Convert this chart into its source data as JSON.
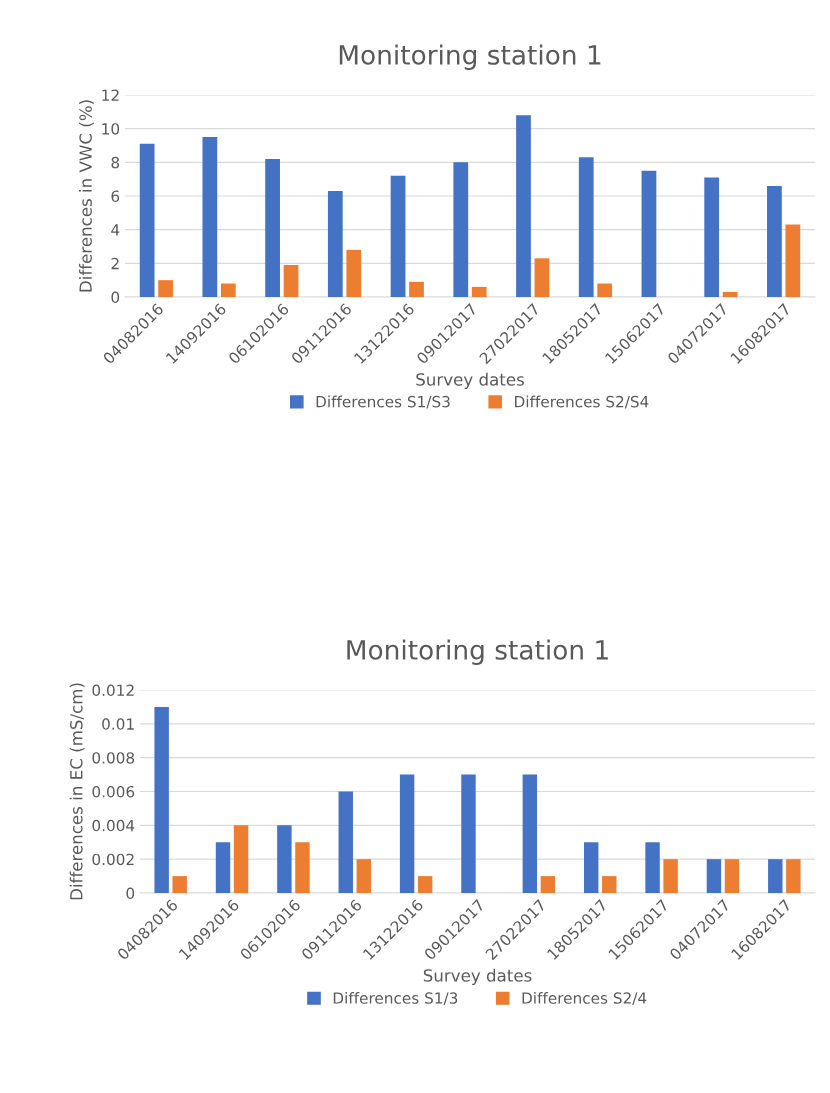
{
  "chart_data": [
    {
      "type": "bar",
      "title": "Monitoring station 1",
      "xlabel": "Survey dates",
      "ylabel": "Differences in VWC (%)",
      "categories": [
        "04082016",
        "14092016",
        "06102016",
        "09112016",
        "13122016",
        "09012017",
        "27022017",
        "18052017",
        "15062017",
        "04072017",
        "16082017"
      ],
      "series": [
        {
          "name": "Differences S1/S3",
          "color": "#4472c4",
          "values": [
            9.1,
            9.5,
            8.2,
            6.3,
            7.2,
            8.0,
            10.8,
            8.3,
            7.5,
            7.1,
            6.6
          ]
        },
        {
          "name": "Differences S2/S4",
          "color": "#ed7d31",
          "values": [
            1.0,
            0.8,
            1.9,
            2.8,
            0.9,
            0.6,
            2.3,
            0.8,
            null,
            0.3,
            4.3
          ]
        }
      ],
      "ylim": [
        0,
        12
      ],
      "yticks": [
        0,
        2,
        4,
        6,
        8,
        10,
        12
      ],
      "grid": "y",
      "legend": "bottom"
    },
    {
      "type": "bar",
      "title": "Monitoring station 1",
      "xlabel": "Survey dates",
      "ylabel": "Differences in EC (mS/cm)",
      "categories": [
        "04082016",
        "14092016",
        "06102016",
        "09112016",
        "13122016",
        "09012017",
        "27022017",
        "18052017",
        "15062017",
        "04072017",
        "16082017"
      ],
      "series": [
        {
          "name": "Differences S1/3",
          "color": "#4472c4",
          "values": [
            0.011,
            0.003,
            0.004,
            0.006,
            0.007,
            0.007,
            0.007,
            0.003,
            0.003,
            0.002,
            0.002
          ]
        },
        {
          "name": "Differences S2/4",
          "color": "#ed7d31",
          "values": [
            0.001,
            0.004,
            0.003,
            0.002,
            0.001,
            null,
            0.001,
            0.001,
            0.002,
            0.002,
            0.002
          ]
        }
      ],
      "ylim": [
        0,
        0.012
      ],
      "yticks": [
        0,
        0.002,
        0.004,
        0.006,
        0.008,
        0.01,
        0.012
      ],
      "grid": "y",
      "legend": "bottom"
    }
  ]
}
